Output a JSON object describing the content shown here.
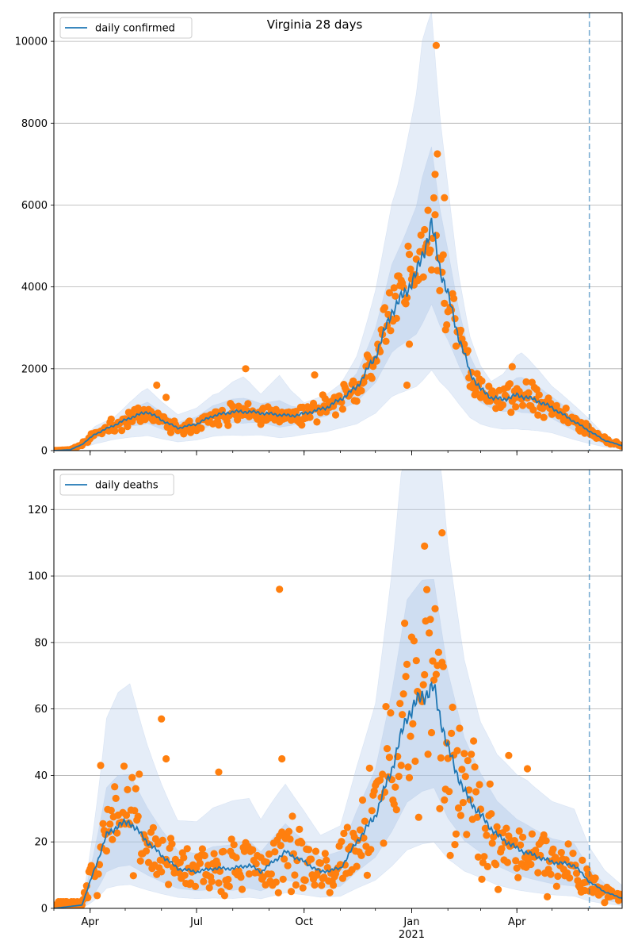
{
  "figure_title": "Virginia 28 days",
  "colors": {
    "line": "#1f77b4",
    "points": "#ff7f0e",
    "band": "#aec7e8",
    "grid": "#b0b0b0"
  },
  "chart_data": [
    {
      "type": "line",
      "title": "Virginia 28 days",
      "legend": "daily confirmed",
      "legend_position": "top-left",
      "ylim": [
        0,
        10700
      ],
      "yticks": [
        0,
        2000,
        4000,
        6000,
        8000,
        10000
      ],
      "ytick_labels": [
        "0",
        "2000",
        "4000",
        "6000",
        "8000",
        "10000"
      ],
      "grid": "horizontal",
      "x_start": "2020-03-01",
      "x_end": "2021-06-30",
      "forecast_start": "2021-06-02",
      "line_anchors": [
        [
          "2020-03-01",
          0
        ],
        [
          "2020-03-15",
          20
        ],
        [
          "2020-03-25",
          150
        ],
        [
          "2020-04-05",
          400
        ],
        [
          "2020-04-20",
          600
        ],
        [
          "2020-05-05",
          800
        ],
        [
          "2020-05-20",
          950
        ],
        [
          "2020-06-01",
          750
        ],
        [
          "2020-06-15",
          550
        ],
        [
          "2020-07-01",
          650
        ],
        [
          "2020-07-15",
          850
        ],
        [
          "2020-08-01",
          950
        ],
        [
          "2020-08-15",
          950
        ],
        [
          "2020-09-01",
          900
        ],
        [
          "2020-09-20",
          850
        ],
        [
          "2020-10-01",
          900
        ],
        [
          "2020-10-20",
          1050
        ],
        [
          "2020-11-01",
          1250
        ],
        [
          "2020-11-15",
          1550
        ],
        [
          "2020-12-01",
          2300
        ],
        [
          "2020-12-15",
          3400
        ],
        [
          "2020-12-25",
          3800
        ],
        [
          "2021-01-05",
          4300
        ],
        [
          "2021-01-18",
          5500
        ],
        [
          "2021-01-25",
          4500
        ],
        [
          "2021-02-01",
          3800
        ],
        [
          "2021-02-10",
          2800
        ],
        [
          "2021-02-20",
          1900
        ],
        [
          "2021-03-01",
          1500
        ],
        [
          "2021-03-10",
          1300
        ],
        [
          "2021-03-20",
          1250
        ],
        [
          "2021-04-01",
          1350
        ],
        [
          "2021-04-10",
          1300
        ],
        [
          "2021-04-20",
          1200
        ],
        [
          "2021-05-01",
          1050
        ],
        [
          "2021-05-15",
          800
        ],
        [
          "2021-06-02",
          480
        ],
        [
          "2021-06-15",
          250
        ],
        [
          "2021-06-30",
          120
        ]
      ],
      "band_anchors": [
        [
          "2020-03-01",
          1,
          1,
          0
        ],
        [
          "2020-03-25",
          1.6,
          1.3,
          0.7
        ],
        [
          "2020-04-20",
          1.3,
          1.15,
          0.8
        ],
        [
          "2020-05-15",
          1.6,
          1.25,
          0.7
        ],
        [
          "2020-06-15",
          1.6,
          1.25,
          0.7
        ],
        [
          "2020-07-20",
          1.6,
          1.3,
          0.75
        ],
        [
          "2020-08-10",
          1.9,
          1.35,
          0.7
        ],
        [
          "2020-08-25",
          1.5,
          1.25,
          0.75
        ],
        [
          "2020-09-10",
          2.1,
          1.4,
          0.65
        ],
        [
          "2020-10-01",
          1.3,
          1.15,
          0.8
        ],
        [
          "2020-11-01",
          1.3,
          1.15,
          0.8
        ],
        [
          "2020-12-01",
          1.7,
          1.3,
          0.72
        ],
        [
          "2020-12-20",
          1.8,
          1.35,
          0.7
        ],
        [
          "2021-01-10",
          2.1,
          1.4,
          0.65
        ],
        [
          "2021-01-18",
          1.95,
          1.35,
          0.65
        ],
        [
          "2021-02-10",
          1.55,
          1.25,
          0.75
        ],
        [
          "2021-03-10",
          1.3,
          1.15,
          0.8
        ],
        [
          "2021-04-05",
          1.8,
          1.35,
          0.7
        ],
        [
          "2021-05-01",
          1.5,
          1.25,
          0.75
        ],
        [
          "2021-06-02",
          1.6,
          1.3,
          0.65
        ],
        [
          "2021-06-30",
          1.5,
          1.3,
          0.65
        ]
      ],
      "scatter_spread": 0.18,
      "scatter_seed": 11,
      "scatter_outliers": [
        [
          "2021-01-22",
          9900
        ],
        [
          "2021-01-23",
          7250
        ],
        [
          "2021-01-21",
          6750
        ],
        [
          "2021-01-29",
          6180
        ],
        [
          "2020-08-12",
          2000
        ],
        [
          "2020-12-28",
          1600
        ],
        [
          "2020-12-30",
          2600
        ],
        [
          "2020-10-10",
          1850
        ],
        [
          "2020-05-28",
          1600
        ],
        [
          "2020-06-05",
          1300
        ],
        [
          "2021-03-28",
          2050
        ]
      ]
    },
    {
      "type": "line",
      "legend": "daily deaths",
      "legend_position": "top-left",
      "ylim": [
        0,
        132
      ],
      "yticks": [
        0,
        20,
        40,
        60,
        80,
        100,
        120
      ],
      "ytick_labels": [
        "0",
        "20",
        "40",
        "60",
        "80",
        "100",
        "120"
      ],
      "grid": "horizontal",
      "x_start": "2020-03-01",
      "x_end": "2021-06-30",
      "forecast_start": "2021-06-02",
      "xticks": [
        "2020-04-01",
        "2020-07-01",
        "2020-10-01",
        "2021-01-01",
        "2021-04-01"
      ],
      "xtick_labels": [
        "Apr",
        "Jul",
        "Oct",
        "Jan",
        "Apr"
      ],
      "year_label": "2021",
      "line_anchors": [
        [
          "2020-03-01",
          0
        ],
        [
          "2020-03-25",
          1
        ],
        [
          "2020-04-05",
          12
        ],
        [
          "2020-04-15",
          22
        ],
        [
          "2020-04-25",
          25
        ],
        [
          "2020-05-05",
          26
        ],
        [
          "2020-05-20",
          20
        ],
        [
          "2020-06-01",
          16
        ],
        [
          "2020-06-15",
          12
        ],
        [
          "2020-07-01",
          11
        ],
        [
          "2020-07-15",
          12
        ],
        [
          "2020-08-01",
          12
        ],
        [
          "2020-08-15",
          13
        ],
        [
          "2020-08-25",
          11
        ],
        [
          "2020-09-15",
          17
        ],
        [
          "2020-10-01",
          14
        ],
        [
          "2020-10-15",
          11
        ],
        [
          "2020-11-01",
          12
        ],
        [
          "2020-11-15",
          20
        ],
        [
          "2020-12-01",
          28
        ],
        [
          "2020-12-15",
          42
        ],
        [
          "2020-12-28",
          58
        ],
        [
          "2021-01-10",
          64
        ],
        [
          "2021-01-20",
          66
        ],
        [
          "2021-02-01",
          48
        ],
        [
          "2021-02-15",
          35
        ],
        [
          "2021-03-01",
          28
        ],
        [
          "2021-03-15",
          22
        ],
        [
          "2021-04-01",
          18
        ],
        [
          "2021-04-15",
          16
        ],
        [
          "2021-05-01",
          14
        ],
        [
          "2021-05-20",
          13
        ],
        [
          "2021-06-02",
          8
        ],
        [
          "2021-06-15",
          5
        ],
        [
          "2021-06-30",
          3
        ]
      ],
      "band_anchors": [
        [
          "2020-03-01",
          1,
          1,
          0
        ],
        [
          "2020-04-15",
          2.6,
          1.65,
          0.5
        ],
        [
          "2020-05-05",
          2.6,
          1.55,
          0.5
        ],
        [
          "2020-06-15",
          2.2,
          1.45,
          0.5
        ],
        [
          "2020-08-01",
          2.7,
          1.6,
          0.45
        ],
        [
          "2020-09-15",
          2.2,
          1.5,
          0.5
        ],
        [
          "2020-10-15",
          2.0,
          1.4,
          0.55
        ],
        [
          "2020-12-01",
          2.2,
          1.5,
          0.55
        ],
        [
          "2020-12-28",
          2.6,
          1.6,
          0.55
        ],
        [
          "2021-01-20",
          2.4,
          1.5,
          0.55
        ],
        [
          "2021-03-01",
          2.0,
          1.45,
          0.6
        ],
        [
          "2021-04-10",
          2.3,
          1.5,
          0.55
        ],
        [
          "2021-06-02",
          2.3,
          1.5,
          0.5
        ],
        [
          "2021-06-30",
          2.3,
          1.5,
          0.5
        ]
      ],
      "scatter_spread": 0.45,
      "scatter_seed": 7,
      "scatter_outliers": [
        [
          "2020-09-10",
          96
        ],
        [
          "2020-06-01",
          57
        ],
        [
          "2021-01-27",
          113
        ],
        [
          "2021-01-12",
          109
        ],
        [
          "2020-04-10",
          43
        ],
        [
          "2020-06-05",
          45
        ],
        [
          "2020-09-12",
          45
        ],
        [
          "2020-07-20",
          41
        ],
        [
          "2021-03-25",
          46
        ],
        [
          "2021-04-10",
          42
        ]
      ]
    }
  ]
}
